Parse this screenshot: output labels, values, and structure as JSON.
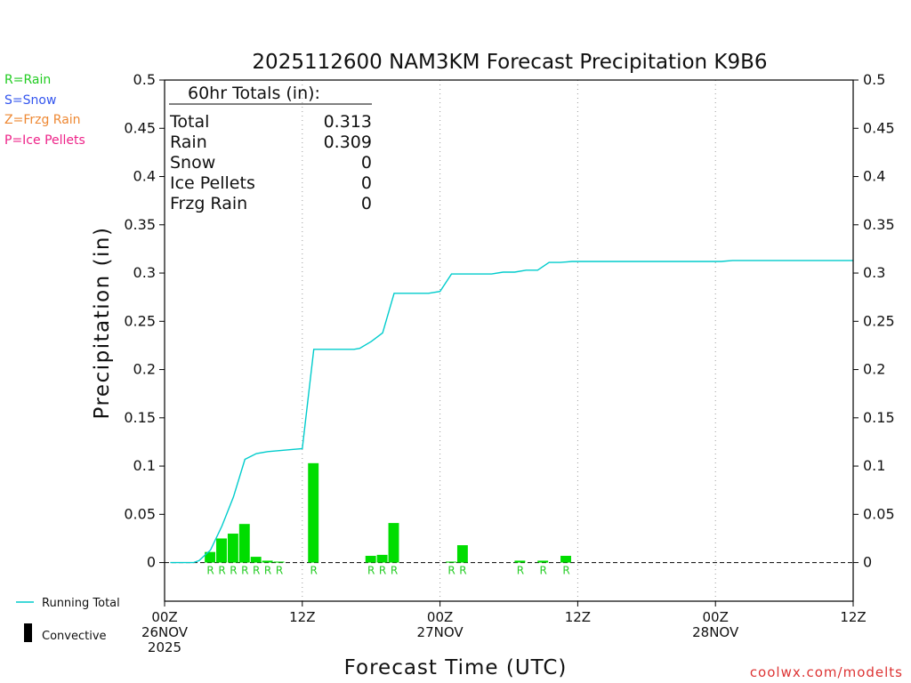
{
  "title": "2025112600 NAM3KM Forecast Precipitation K9B6",
  "ylabel": "Precipitation (in)",
  "xlabel": "Forecast Time (UTC)",
  "watermark": "coolwx.com/modelts",
  "ptype_legend": [
    {
      "label": "R=Rain",
      "color": "#22cc22"
    },
    {
      "label": "S=Snow",
      "color": "#3355ee"
    },
    {
      "label": "Z=Frzg Rain",
      "color": "#ee8833"
    },
    {
      "label": "P=Ice Pellets",
      "color": "#ee2288"
    }
  ],
  "series_legend": {
    "running_total_label": "Running Total",
    "convective_label": "Convective"
  },
  "totals": {
    "heading": "60hr Totals (in):",
    "rows": [
      {
        "label": "Total",
        "value": "0.313"
      },
      {
        "label": "Rain",
        "value": "0.309"
      },
      {
        "label": "Snow",
        "value": "0"
      },
      {
        "label": "Ice Pellets",
        "value": "0"
      },
      {
        "label": "Frzg Rain",
        "value": "0"
      }
    ]
  },
  "colors": {
    "bar": "#00dd00",
    "line": "#00cccc",
    "ptype_rain": "#22cc22",
    "watermark": "#dd3333"
  },
  "chart_data": {
    "type": "bar",
    "title": "2025112600 NAM3KM Forecast Precipitation K9B6",
    "xlabel": "Forecast Time (UTC)",
    "ylabel": "Precipitation (in)",
    "xlim": [
      0,
      60
    ],
    "ylim": [
      -0.04,
      0.5
    ],
    "yticks": [
      0,
      0.05,
      0.1,
      0.15,
      0.2,
      0.25,
      0.3,
      0.35,
      0.4,
      0.45,
      0.5
    ],
    "ytick_labels": [
      "0",
      "0.05",
      "0.1",
      "0.15",
      "0.2",
      "0.25",
      "0.3",
      "0.35",
      "0.4",
      "0.45",
      "0.5"
    ],
    "xticks": [
      {
        "hour": 0,
        "lines": [
          "00Z",
          "26NOV",
          "2025"
        ]
      },
      {
        "hour": 12,
        "lines": [
          "12Z"
        ]
      },
      {
        "hour": 24,
        "lines": [
          "00Z",
          "27NOV"
        ]
      },
      {
        "hour": 36,
        "lines": [
          "12Z"
        ]
      },
      {
        "hour": 48,
        "lines": [
          "00Z",
          "28NOV"
        ]
      },
      {
        "hour": 60,
        "lines": [
          "12Z"
        ]
      }
    ],
    "bars": [
      {
        "hour": 4,
        "value": 0.011,
        "ptype": "R"
      },
      {
        "hour": 5,
        "value": 0.025,
        "ptype": "R"
      },
      {
        "hour": 6,
        "value": 0.03,
        "ptype": "R"
      },
      {
        "hour": 7,
        "value": 0.04,
        "ptype": "R"
      },
      {
        "hour": 8,
        "value": 0.006,
        "ptype": "R"
      },
      {
        "hour": 9,
        "value": 0.002,
        "ptype": "R"
      },
      {
        "hour": 10,
        "value": 0.001,
        "ptype": "R"
      },
      {
        "hour": 13,
        "value": 0.103,
        "ptype": "R"
      },
      {
        "hour": 18,
        "value": 0.007,
        "ptype": "R"
      },
      {
        "hour": 19,
        "value": 0.008,
        "ptype": "R"
      },
      {
        "hour": 20,
        "value": 0.041,
        "ptype": "R"
      },
      {
        "hour": 25,
        "value": 0.001,
        "ptype": "R"
      },
      {
        "hour": 26,
        "value": 0.018,
        "ptype": "R"
      },
      {
        "hour": 31,
        "value": 0.002,
        "ptype": "R"
      },
      {
        "hour": 33,
        "value": 0.002,
        "ptype": "R"
      },
      {
        "hour": 35,
        "value": 0.007,
        "ptype": "R"
      }
    ],
    "running_total": [
      [
        0.5,
        0
      ],
      [
        2.5,
        0
      ],
      [
        3,
        0.002
      ],
      [
        4,
        0.013
      ],
      [
        5,
        0.038
      ],
      [
        6,
        0.068
      ],
      [
        7,
        0.107
      ],
      [
        8,
        0.113
      ],
      [
        9,
        0.115
      ],
      [
        10,
        0.116
      ],
      [
        11,
        0.117
      ],
      [
        12,
        0.118
      ],
      [
        13,
        0.221
      ],
      [
        15,
        0.221
      ],
      [
        16.5,
        0.221
      ],
      [
        17,
        0.222
      ],
      [
        18,
        0.229
      ],
      [
        19,
        0.238
      ],
      [
        20,
        0.279
      ],
      [
        23,
        0.279
      ],
      [
        24,
        0.281
      ],
      [
        25,
        0.299
      ],
      [
        27,
        0.299
      ],
      [
        28.5,
        0.299
      ],
      [
        29.5,
        0.301
      ],
      [
        30.5,
        0.301
      ],
      [
        31.5,
        0.303
      ],
      [
        32.5,
        0.303
      ],
      [
        33.5,
        0.311
      ],
      [
        34.5,
        0.311
      ],
      [
        35.5,
        0.312
      ],
      [
        48.5,
        0.312
      ],
      [
        49.5,
        0.313
      ],
      [
        60,
        0.313
      ]
    ],
    "grid": "vertical dotted at 12Z/00Z",
    "legend": "bottom-left"
  }
}
